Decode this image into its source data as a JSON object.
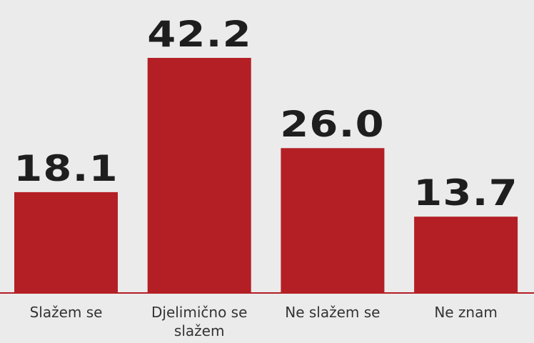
{
  "chart_data": {
    "type": "bar",
    "categories": [
      "Slažem se",
      "Djelimično se slažem",
      "Ne slažem se",
      "Ne znam"
    ],
    "values": [
      18.1,
      42.2,
      26.0,
      13.7
    ],
    "value_labels": [
      "18.1",
      "42.2",
      "26.0",
      "13.7"
    ],
    "color": "#b31f25"
  }
}
